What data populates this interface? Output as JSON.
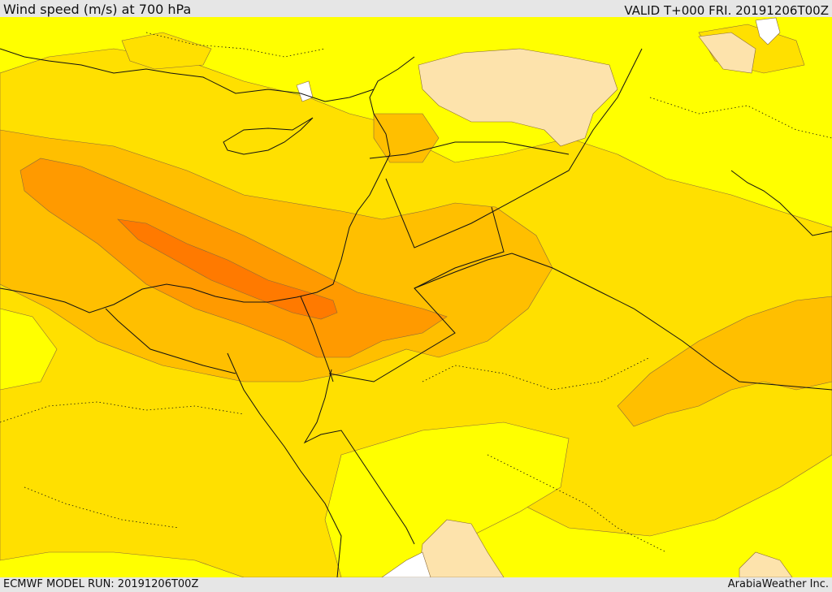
{
  "header": {
    "title": "Wind speed (m/s) at 700 hPa",
    "valid": "VALID T+000 FRI. 20191206T00Z"
  },
  "footer": {
    "model_run": "ECMWF MODEL RUN: 20191206T00Z",
    "credit": "ArabiaWeather Inc."
  },
  "palette": {
    "calm": "#fde3ac",
    "light": "#ffff00",
    "moderate": "#ffe000",
    "fresh": "#ffbf00",
    "strong": "#ff9a00",
    "very_strong": "#ff7a00",
    "water": "#ffffff",
    "lines": "#111111"
  }
}
